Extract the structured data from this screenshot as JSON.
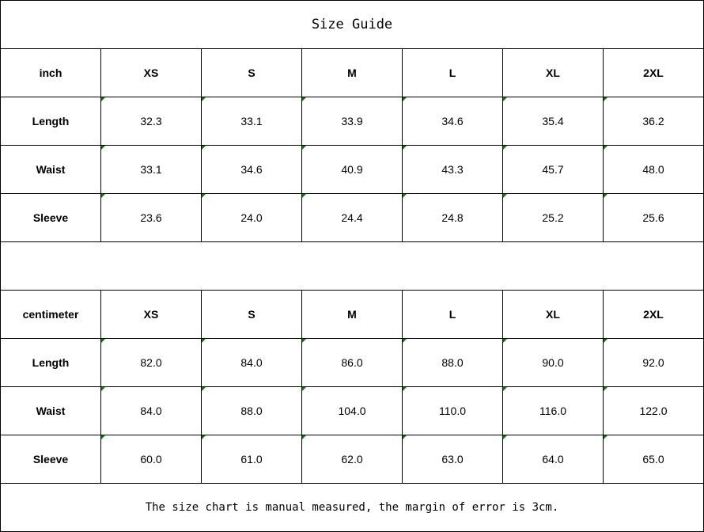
{
  "title": "Size Guide",
  "tables": [
    {
      "unit": "inch",
      "sizes": [
        "XS",
        "S",
        "M",
        "L",
        "XL",
        "2XL"
      ],
      "rows": [
        {
          "label": "Length",
          "values": [
            "32.3",
            "33.1",
            "33.9",
            "34.6",
            "35.4",
            "36.2"
          ]
        },
        {
          "label": "Waist",
          "values": [
            "33.1",
            "34.6",
            "40.9",
            "43.3",
            "45.7",
            "48.0"
          ]
        },
        {
          "label": "Sleeve",
          "values": [
            "23.6",
            "24.0",
            "24.4",
            "24.8",
            "25.2",
            "25.6"
          ]
        }
      ]
    },
    {
      "unit": "centimeter",
      "sizes": [
        "XS",
        "S",
        "M",
        "L",
        "XL",
        "2XL"
      ],
      "rows": [
        {
          "label": "Length",
          "values": [
            "82.0",
            "84.0",
            "86.0",
            "88.0",
            "90.0",
            "92.0"
          ]
        },
        {
          "label": "Waist",
          "values": [
            "84.0",
            "88.0",
            "104.0",
            "110.0",
            "116.0",
            "122.0"
          ]
        },
        {
          "label": "Sleeve",
          "values": [
            "60.0",
            "61.0",
            "62.0",
            "63.0",
            "64.0",
            "65.0"
          ]
        }
      ]
    }
  ],
  "note": "The size chart is manual measured, the margin of error is 3cm.",
  "colors": {
    "number_indicator": "#008000",
    "border": "#000000"
  }
}
